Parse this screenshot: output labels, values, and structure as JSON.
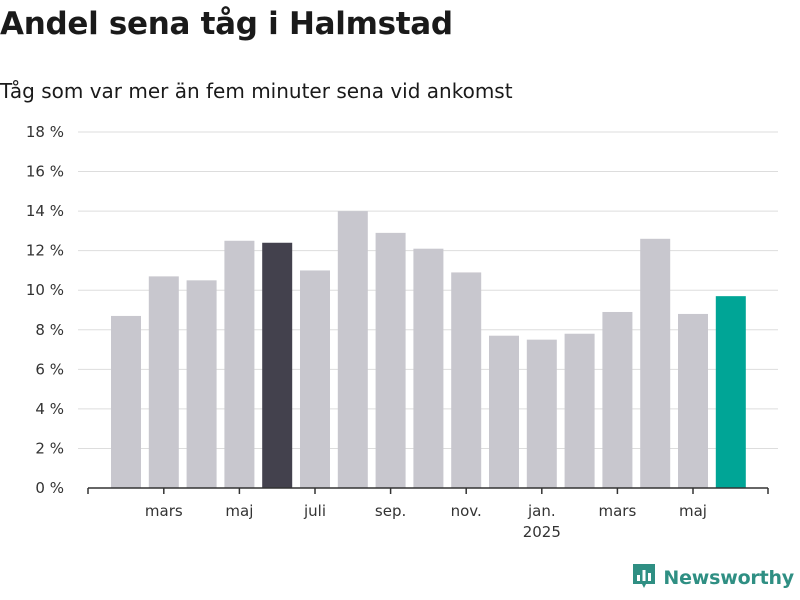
{
  "header": {
    "title": "Andel sena tåg i Halmstad",
    "subtitle": "Tåg som var mer än fem minuter sena vid ankomst"
  },
  "brand": {
    "name": "Newsworthy",
    "icon": "bar-chart-badge-icon",
    "color": "#2f8f83"
  },
  "colors": {
    "default": "#c8c7ce",
    "highlight_dark": "#43414d",
    "highlight_current": "#00a596",
    "grid": "#dddddd",
    "axis": "#333333"
  },
  "chart_data": {
    "type": "bar",
    "title": "Andel sena tåg i Halmstad",
    "subtitle": "Tåg som var mer än fem minuter sena vid ankomst",
    "xlabel": "",
    "ylabel": "",
    "ylim": [
      0,
      18
    ],
    "y_ticks": [
      0,
      2,
      4,
      6,
      8,
      10,
      12,
      14,
      16,
      18
    ],
    "y_tick_labels": [
      "0 %",
      "2 %",
      "4 %",
      "6 %",
      "8 %",
      "10 %",
      "12 %",
      "14 %",
      "16 %",
      "18 %"
    ],
    "grid": true,
    "categories": [
      "2024-02",
      "2024-03",
      "2024-04",
      "2024-05",
      "2024-06",
      "2024-07",
      "2024-08",
      "2024-09",
      "2024-10",
      "2024-11",
      "2024-12",
      "2025-01",
      "2025-02",
      "2025-03",
      "2025-04",
      "2025-05",
      "2025-06"
    ],
    "values": [
      8.7,
      10.7,
      10.5,
      12.5,
      12.4,
      11.0,
      14.0,
      12.9,
      12.1,
      10.9,
      7.7,
      7.5,
      7.8,
      8.9,
      12.6,
      8.8,
      9.7
    ],
    "highlight": {
      "2024-06": "highlight_dark",
      "2025-06": "highlight_current"
    },
    "x_tick_labels": [
      {
        "category": "2024-03",
        "label": "mars"
      },
      {
        "category": "2024-05",
        "label": "maj"
      },
      {
        "category": "2024-07",
        "label": "juli"
      },
      {
        "category": "2024-09",
        "label": "sep."
      },
      {
        "category": "2024-11",
        "label": "nov."
      },
      {
        "category": "2025-01",
        "label": "jan."
      },
      {
        "category": "2025-03",
        "label": "mars"
      },
      {
        "category": "2025-05",
        "label": "maj"
      }
    ],
    "year_labels": [
      {
        "category": "2025-01",
        "label": "2025"
      }
    ]
  }
}
